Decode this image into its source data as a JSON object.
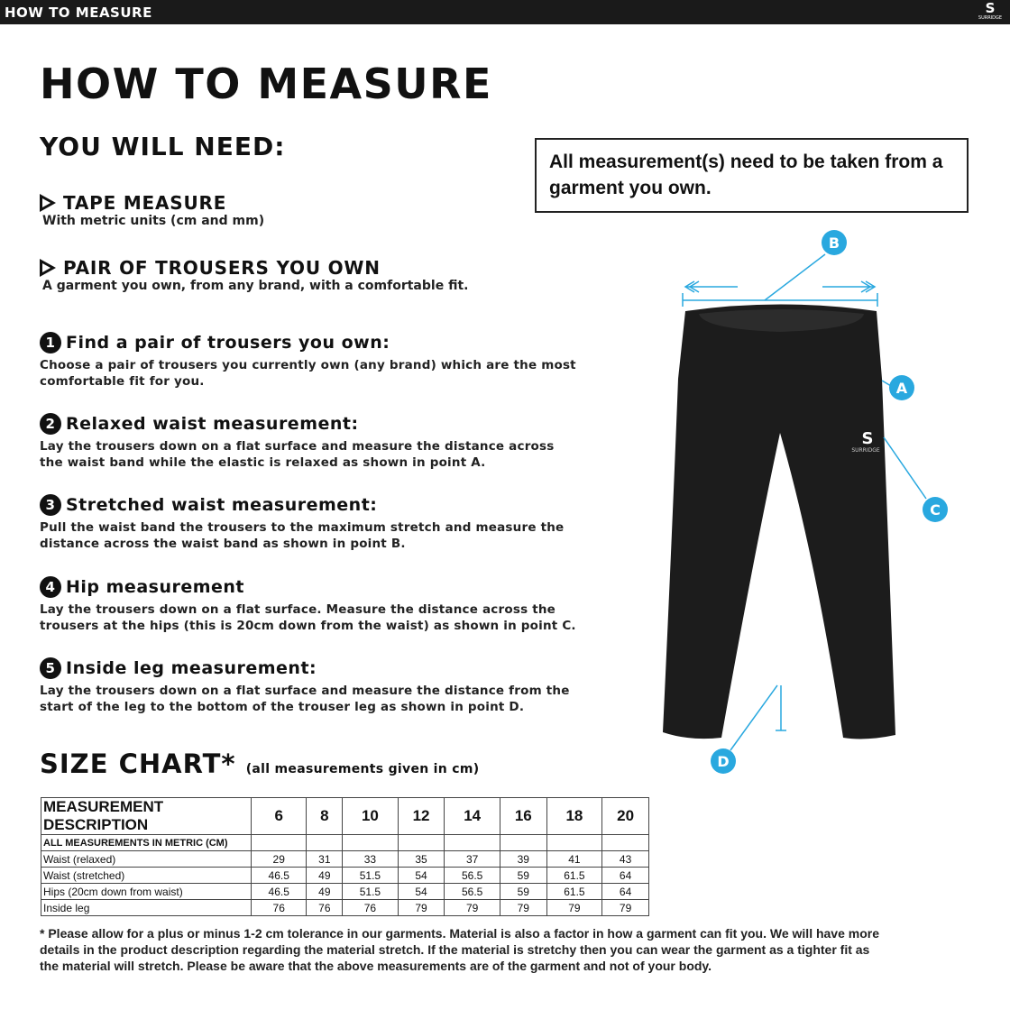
{
  "header": {
    "title": "HOW TO MEASURE",
    "logo": "SURRIDGE"
  },
  "page_title": "HOW TO MEASURE",
  "you_will_need": {
    "heading": "YOU WILL NEED:",
    "items": [
      {
        "title": "TAPE MEASURE",
        "desc": "With metric units (cm and mm)"
      },
      {
        "title": "PAIR OF TROUSERS YOU OWN",
        "desc": "A garment you own, from any brand, with a comfortable fit."
      }
    ]
  },
  "notice": "All measurement(s) need to be taken from a garment you own.",
  "steps": [
    {
      "num": "1",
      "title": "Find a pair of trousers you own:",
      "text": "Choose a pair of trousers you currently own (any brand) which are the most comfortable fit for you."
    },
    {
      "num": "2",
      "title": "Relaxed waist measurement:",
      "text": "Lay the trousers down on a flat surface and measure the distance across the waist band while the elastic is relaxed as shown in point A."
    },
    {
      "num": "3",
      "title": "Stretched waist measurement:",
      "text": "Pull the waist band the trousers to the maximum stretch and measure the distance across the waist band as shown in point B."
    },
    {
      "num": "4",
      "title": "Hip measurement",
      "text": "Lay the trousers down on a flat surface. Measure the distance across the trousers at the hips (this is 20cm down from the waist) as shown in point C."
    },
    {
      "num": "5",
      "title": "Inside leg measurement:",
      "text": "Lay the trousers down on a flat surface and measure the distance from the start of the leg to the bottom of the trouser leg as shown in point D."
    }
  ],
  "diagram": {
    "labels": [
      "A",
      "B",
      "C",
      "D"
    ],
    "accent": "#29a8df",
    "garment_logo": "SURRIDGE"
  },
  "size_chart": {
    "title": "SIZE CHART",
    "asterisk": "*",
    "subtitle": "(all measurements given in cm)",
    "header": [
      "MEASUREMENT DESCRIPTION",
      "6",
      "8",
      "10",
      "12",
      "14",
      "16",
      "18",
      "20"
    ],
    "metric_row": "ALL MEASUREMENTS IN METRIC (CM)",
    "rows": [
      [
        "Waist (relaxed)",
        "29",
        "31",
        "33",
        "35",
        "37",
        "39",
        "41",
        "43"
      ],
      [
        "Waist (stretched)",
        "46.5",
        "49",
        "51.5",
        "54",
        "56.5",
        "59",
        "61.5",
        "64"
      ],
      [
        "Hips (20cm down from waist)",
        "46.5",
        "49",
        "51.5",
        "54",
        "56.5",
        "59",
        "61.5",
        "64"
      ],
      [
        "Inside leg",
        "76",
        "76",
        "76",
        "79",
        "79",
        "79",
        "79",
        "79"
      ]
    ]
  },
  "footnote": "* Please allow for a plus or minus 1-2 cm tolerance in our garments. Material is also a factor in how a garment can fit you. We will have more details in the product description regarding the material stretch.  If the material is stretchy then you can wear the garment as a tighter fit as the material will stretch.  Please be aware that the above measurements are of the garment and not of your body."
}
